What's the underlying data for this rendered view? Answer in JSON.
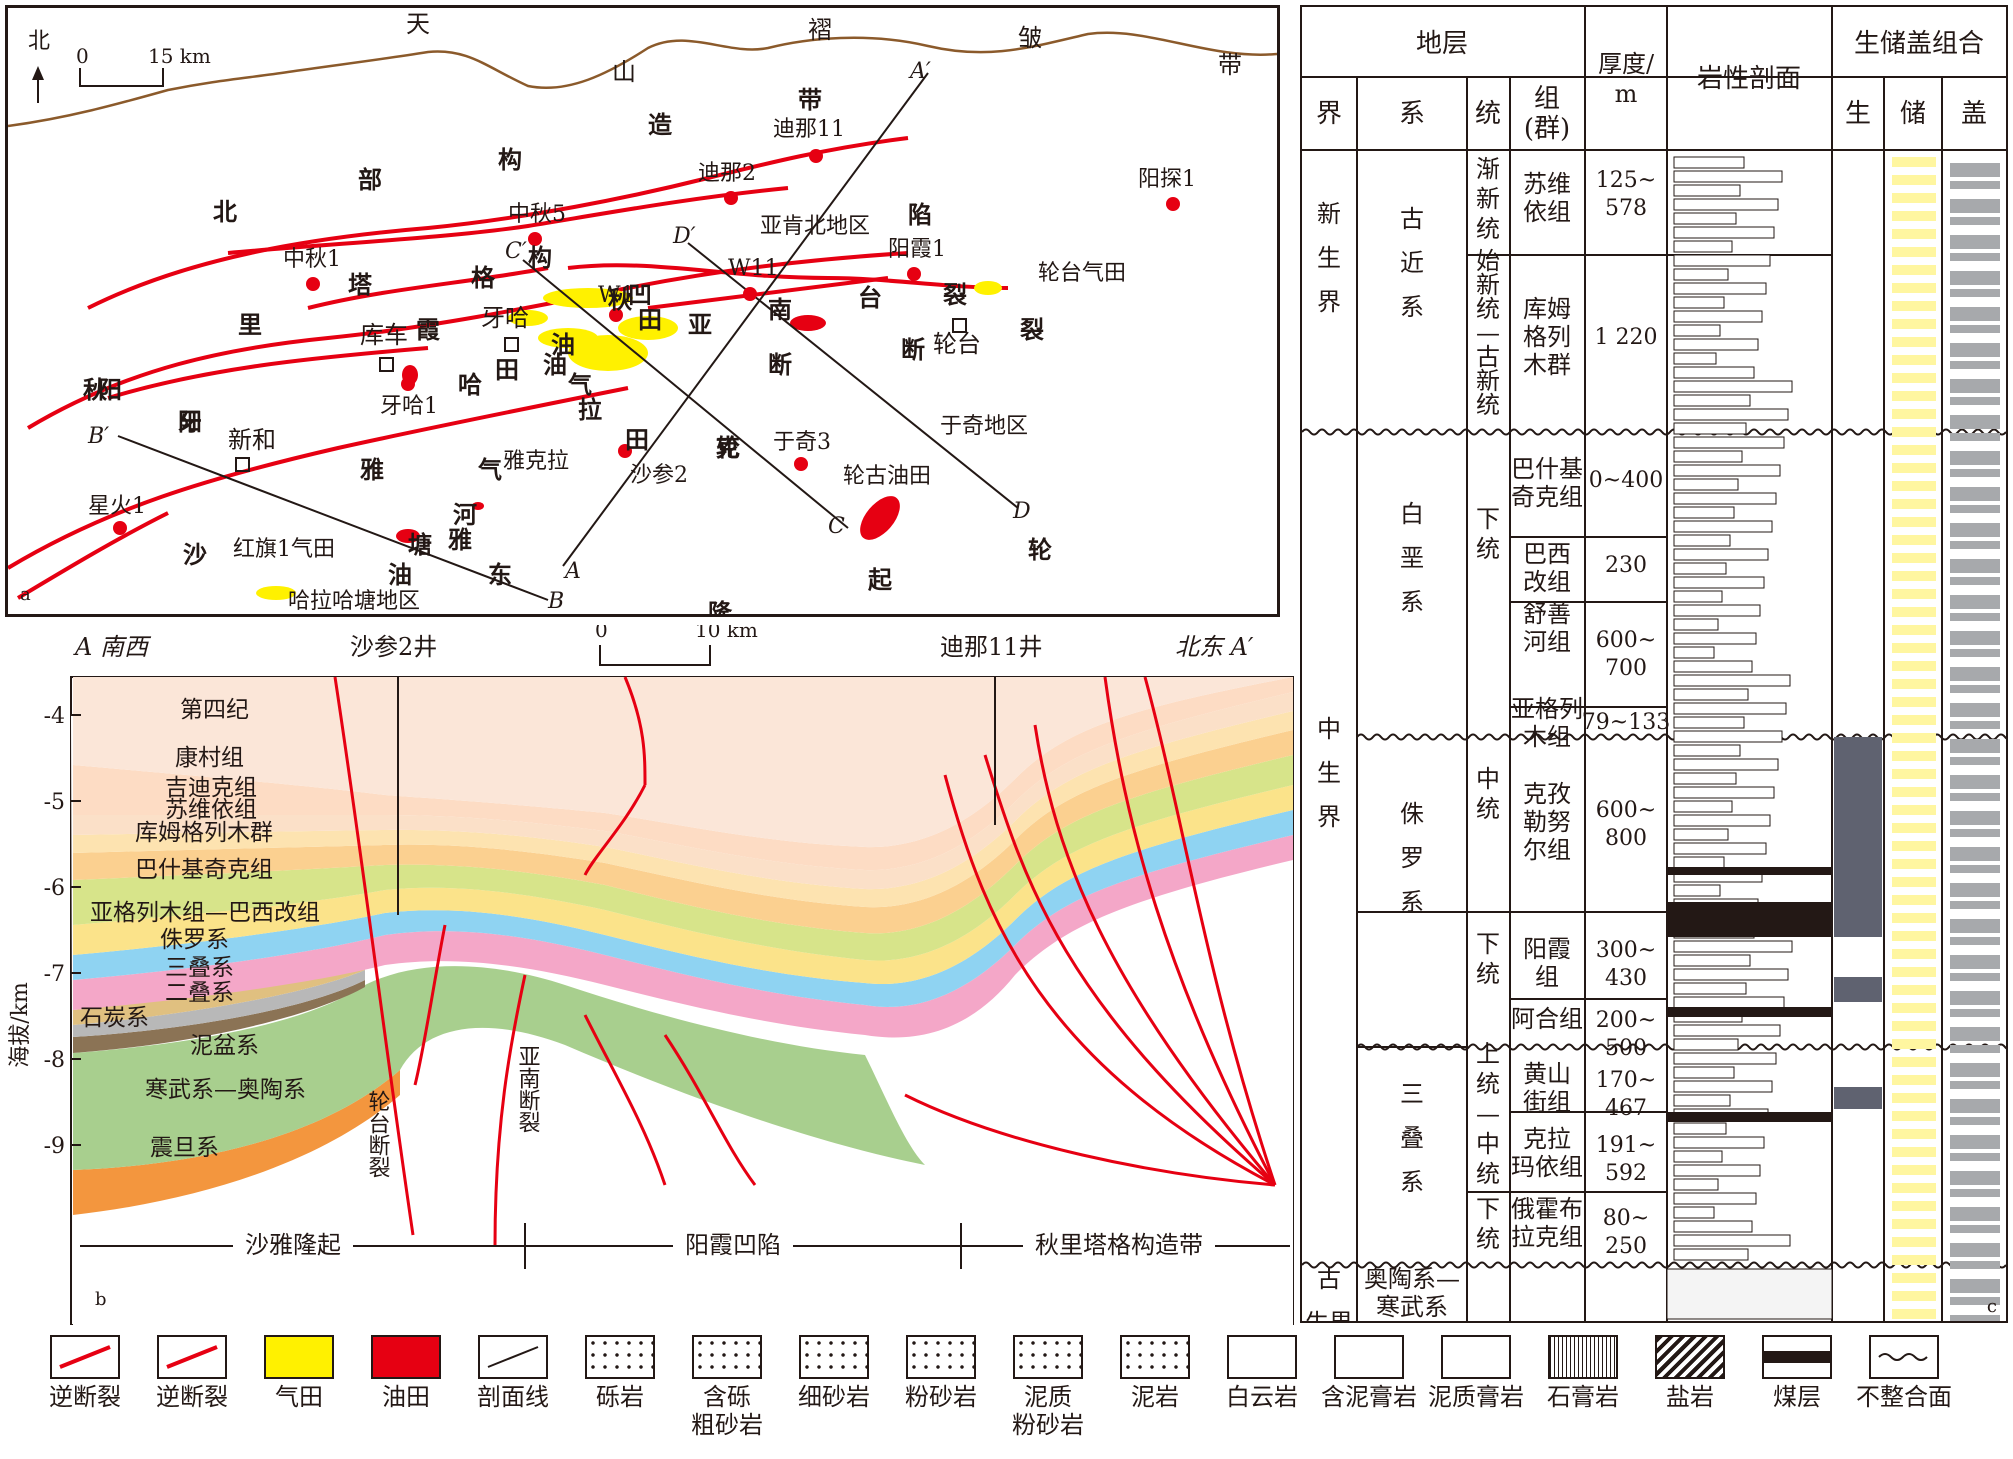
{
  "map": {
    "letter": "a",
    "north_label": "北",
    "scale_zero": "0",
    "scale_end": "15 km",
    "belt_tian": "天",
    "belt_zhe": "褶",
    "belt_zhou": "皱",
    "belt_dai": "带",
    "shan": "山",
    "big_labels": [
      "北",
      "部",
      "构",
      "造",
      "带",
      "秋",
      "里",
      "塔",
      "格",
      "构",
      "凹",
      "陷",
      "阳",
      "霞",
      "油",
      "气",
      "田",
      "亚",
      "南",
      "断",
      "裂",
      "台",
      "断",
      "裂",
      "轮",
      "拉",
      "田",
      "油",
      "气",
      "雅",
      "克",
      "轮",
      "隆",
      "起",
      "沙",
      "雅",
      "河",
      "东",
      "塘",
      "油",
      "田",
      "哈",
      "牙",
      "阳",
      "秋"
    ],
    "wells": [
      "迪那11",
      "迪那2",
      "中秋5",
      "中秋1",
      "阳霞1",
      "阳探1",
      "W11",
      "W1",
      "牙哈1",
      "沙参2",
      "于奇3",
      "星火1"
    ],
    "towns": [
      "库车",
      "牙哈",
      "新和",
      "轮台"
    ],
    "areas": [
      "亚肯北地区",
      "于奇地区",
      "哈拉哈塘地区"
    ],
    "fields": [
      "轮台气田",
      "轮古油田",
      "红旗1气田"
    ],
    "section_lines": [
      "A",
      "A′",
      "B",
      "B′",
      "C",
      "C′",
      "D",
      "D′"
    ],
    "extra": [
      "雅克拉",
      "克拉",
      "田"
    ]
  },
  "section": {
    "letter": "b",
    "left_label": "A 南西",
    "right_label": "北东 A′",
    "well1": "沙参2井",
    "well2": "迪那11井",
    "scale_zero": "0",
    "scale_end": "10 km",
    "ylabel": "海拔/km",
    "yticks": [
      "-4",
      "-5",
      "-6",
      "-7",
      "-8",
      "-9"
    ],
    "units": [
      "第四纪",
      "康村组",
      "吉迪克组",
      "苏维依组",
      "库姆格列木群",
      "巴什基奇克组",
      "亚格列木组—巴西改组",
      "侏罗系",
      "三叠系",
      "二叠系",
      "石炭系",
      "泥盆系",
      "寒武系—奥陶系",
      "震旦系"
    ],
    "fault1": "轮台断裂",
    "fault2": "亚南断裂",
    "zones": [
      "沙雅隆起",
      "阳霞凹陷",
      "秋里塔格构造带"
    ]
  },
  "strat": {
    "letter": "c",
    "header_diceng": "地层",
    "header_jie": "界",
    "header_xi": "系",
    "header_tong": "统",
    "header_zu": "组\n(群)",
    "header_thick": "厚度/\nm",
    "header_lith": "岩性剖面",
    "header_combo": "生储盖组合",
    "header_sheng": "生",
    "header_chu": "储",
    "header_gai": "盖",
    "jie": [
      "新\n生\n界",
      "中\n生\n界",
      "古\n生界"
    ],
    "xi": [
      "古\n近\n系",
      "白\n垩\n系",
      "侏\n罗\n系",
      "三\n叠\n系",
      "奥陶系—\n寒武系"
    ],
    "tong": [
      "渐\n新\n统",
      "始\n新\n统\n—\n古\n新\n统",
      "下\n统",
      "中\n统",
      "下\n统",
      "上\n统\n—\n中\n统",
      "下\n统"
    ],
    "zu": [
      "苏维\n依组",
      "库姆\n格列\n木群",
      "巴什基\n奇克组",
      "巴西\n改组",
      "舒善\n河组",
      "亚格列\n木组",
      "克孜\n勒努\n尔组",
      "阳霞\n组",
      "阿合组",
      "黄山\n街组",
      "克拉\n玛依组",
      "俄霍布\n拉克组"
    ],
    "thick": [
      "125~\n578",
      "1 220",
      "0~400",
      "230",
      "600~\n700",
      "79~133",
      "600~\n800",
      "300~\n430",
      "200~\n500",
      "170~\n467",
      "191~\n592",
      "80~\n250"
    ]
  },
  "legend": {
    "items": [
      "逆断裂",
      "逆断裂",
      "气田",
      "油田",
      "剖面线",
      "砾岩",
      "含砾\n粗砂岩",
      "细砂岩",
      "粉砂岩",
      "泥质\n粉砂岩",
      "泥岩",
      "白云岩",
      "含泥膏岩",
      "泥质膏岩",
      "石膏岩",
      "盐岩",
      "煤层",
      "不整合面"
    ]
  },
  "colors": {
    "fault_red": "#e60012",
    "gas_yellow": "#fff100",
    "oil_red": "#e60012",
    "mountain_brown": "#8b5a2b",
    "source_gray": "#5f6270",
    "reservoir_yellow": "#fff6a0",
    "seal_gray": "#a7a9ac"
  }
}
